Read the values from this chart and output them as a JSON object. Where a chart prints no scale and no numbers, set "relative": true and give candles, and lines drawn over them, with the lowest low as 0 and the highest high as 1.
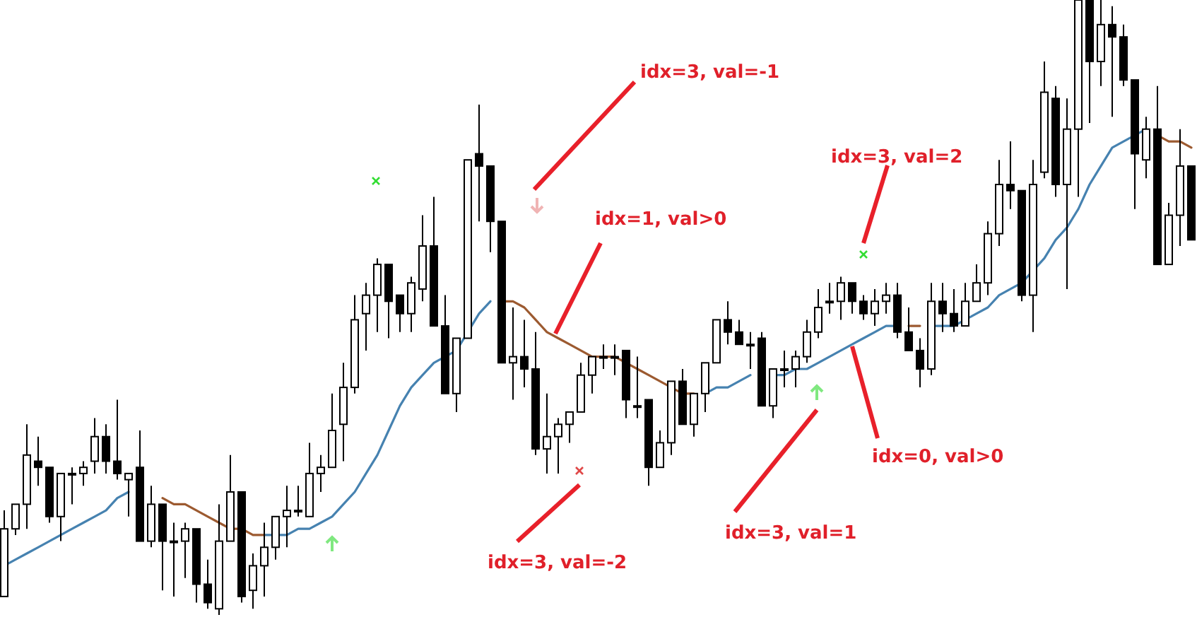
{
  "chart_data": {
    "type": "candlestick",
    "relative": true,
    "categories": [
      null,
      null,
      null,
      null,
      null,
      null,
      null,
      null,
      null,
      null,
      null,
      null,
      null,
      null,
      null,
      null,
      null,
      null,
      null,
      null,
      null,
      null,
      null,
      null,
      null,
      null,
      null,
      null,
      null,
      null,
      null,
      null,
      null,
      null,
      null,
      null,
      null,
      null,
      null,
      null,
      null,
      null,
      null,
      null,
      null,
      null,
      null,
      null,
      null,
      null,
      null,
      null,
      null,
      null,
      null,
      null,
      null,
      null,
      null,
      null,
      null,
      null,
      null,
      null,
      null,
      null,
      null,
      null,
      null,
      null,
      null,
      null,
      null,
      null,
      null,
      null,
      null,
      null,
      null,
      null,
      null,
      null,
      null,
      null,
      null,
      null,
      null,
      null,
      null,
      null,
      null,
      null,
      null,
      null,
      null,
      null,
      null,
      null,
      null,
      null,
      null,
      null,
      null,
      null,
      null,
      null
    ],
    "ohlc": [
      [
        0.03,
        0.17,
        0.03,
        0.14
      ],
      [
        0.14,
        0.18,
        0.13,
        0.18
      ],
      [
        0.18,
        0.31,
        0.14,
        0.26
      ],
      [
        0.25,
        0.29,
        0.21,
        0.24
      ],
      [
        0.24,
        0.24,
        0.15,
        0.16
      ],
      [
        0.16,
        0.23,
        0.12,
        0.23
      ],
      [
        0.23,
        0.24,
        0.18,
        0.23
      ],
      [
        0.23,
        0.25,
        0.21,
        0.24
      ],
      [
        0.25,
        0.32,
        0.23,
        0.29
      ],
      [
        0.29,
        0.31,
        0.23,
        0.25
      ],
      [
        0.25,
        0.35,
        0.22,
        0.23
      ],
      [
        0.22,
        0.23,
        0.16,
        0.23
      ],
      [
        0.24,
        0.3,
        0.12,
        0.12
      ],
      [
        0.12,
        0.21,
        0.11,
        0.18
      ],
      [
        0.18,
        0.18,
        0.04,
        0.12
      ],
      [
        0.12,
        0.15,
        0.03,
        0.12
      ],
      [
        0.12,
        0.15,
        0.06,
        0.14
      ],
      [
        0.14,
        0.14,
        0.02,
        0.05
      ],
      [
        0.05,
        0.09,
        0.01,
        0.02
      ],
      [
        0.01,
        0.18,
        0,
        0.12
      ],
      [
        0.12,
        0.26,
        0.12,
        0.2
      ],
      [
        0.2,
        0.2,
        0.02,
        0.03
      ],
      [
        0.04,
        0.1,
        0.01,
        0.08
      ],
      [
        0.08,
        0.15,
        0.03,
        0.11
      ],
      [
        0.11,
        0.16,
        0.09,
        0.16
      ],
      [
        0.16,
        0.21,
        0.11,
        0.17
      ],
      [
        0.17,
        0.21,
        0.16,
        0.17
      ],
      [
        0.16,
        0.28,
        0.16,
        0.23
      ],
      [
        0.23,
        0.26,
        0.2,
        0.24
      ],
      [
        0.24,
        0.36,
        0.24,
        0.3
      ],
      [
        0.31,
        0.41,
        0.25,
        0.37
      ],
      [
        0.37,
        0.52,
        0.36,
        0.48
      ],
      [
        0.49,
        0.54,
        0.43,
        0.52
      ],
      [
        0.52,
        0.58,
        0.46,
        0.57
      ],
      [
        0.57,
        0.57,
        0.45,
        0.51
      ],
      [
        0.52,
        0.52,
        0.46,
        0.49
      ],
      [
        0.49,
        0.55,
        0.46,
        0.54
      ],
      [
        0.53,
        0.65,
        0.51,
        0.6
      ],
      [
        0.6,
        0.68,
        0.47,
        0.47
      ],
      [
        0.47,
        0.52,
        0.36,
        0.36
      ],
      [
        0.36,
        0.45,
        0.33,
        0.45
      ],
      [
        0.45,
        0.74,
        0.45,
        0.74
      ],
      [
        0.75,
        0.83,
        0.64,
        0.73
      ],
      [
        0.73,
        0.73,
        0.59,
        0.64
      ],
      [
        0.64,
        0.64,
        0.41,
        0.41
      ],
      [
        0.41,
        0.5,
        0.35,
        0.42
      ],
      [
        0.42,
        0.48,
        0.37,
        0.4
      ],
      [
        0.4,
        0.46,
        0.26,
        0.27
      ],
      [
        0.27,
        0.36,
        0.23,
        0.29
      ],
      [
        0.29,
        0.32,
        0.23,
        0.31
      ],
      [
        0.31,
        0.33,
        0.28,
        0.33
      ],
      [
        0.33,
        0.41,
        0.33,
        0.39
      ],
      [
        0.39,
        0.42,
        0.36,
        0.42
      ],
      [
        0.42,
        0.44,
        0.4,
        0.42
      ],
      [
        0.42,
        0.44,
        0.39,
        0.42
      ],
      [
        0.43,
        0.43,
        0.32,
        0.35
      ],
      [
        0.34,
        0.42,
        0.32,
        0.34
      ],
      [
        0.35,
        0.35,
        0.21,
        0.24
      ],
      [
        0.24,
        0.3,
        0.24,
        0.28
      ],
      [
        0.28,
        0.38,
        0.26,
        0.38
      ],
      [
        0.38,
        0.4,
        0.31,
        0.31
      ],
      [
        0.31,
        0.36,
        0.29,
        0.36
      ],
      [
        0.36,
        0.41,
        0.33,
        0.41
      ],
      [
        0.41,
        0.48,
        0.41,
        0.48
      ],
      [
        0.48,
        0.51,
        0.44,
        0.46
      ],
      [
        0.46,
        0.48,
        0.44,
        0.44
      ],
      [
        0.44,
        0.46,
        0.4,
        0.44
      ],
      [
        0.45,
        0.46,
        0.34,
        0.34
      ],
      [
        0.34,
        0.4,
        0.32,
        0.4
      ],
      [
        0.4,
        0.43,
        0.37,
        0.4
      ],
      [
        0.4,
        0.43,
        0.37,
        0.42
      ],
      [
        0.42,
        0.48,
        0.41,
        0.46
      ],
      [
        0.46,
        0.53,
        0.45,
        0.5
      ],
      [
        0.51,
        0.54,
        0.49,
        0.51
      ],
      [
        0.51,
        0.55,
        0.48,
        0.54
      ],
      [
        0.54,
        0.54,
        0.49,
        0.51
      ],
      [
        0.51,
        0.52,
        0.48,
        0.49
      ],
      [
        0.49,
        0.53,
        0.47,
        0.51
      ],
      [
        0.51,
        0.54,
        0.49,
        0.52
      ],
      [
        0.52,
        0.54,
        0.45,
        0.46
      ],
      [
        0.46,
        0.5,
        0.43,
        0.43
      ],
      [
        0.43,
        0.45,
        0.37,
        0.4
      ],
      [
        0.4,
        0.54,
        0.39,
        0.51
      ],
      [
        0.51,
        0.54,
        0.46,
        0.49
      ],
      [
        0.49,
        0.53,
        0.46,
        0.47
      ],
      [
        0.47,
        0.54,
        0.47,
        0.51
      ],
      [
        0.51,
        0.57,
        0.51,
        0.54
      ],
      [
        0.54,
        0.64,
        0.52,
        0.62
      ],
      [
        0.62,
        0.74,
        0.6,
        0.7
      ],
      [
        0.7,
        0.77,
        0.66,
        0.69
      ],
      [
        0.69,
        0.69,
        0.51,
        0.52
      ],
      [
        0.52,
        0.74,
        0.46,
        0.7
      ],
      [
        0.72,
        0.9,
        0.71,
        0.85
      ],
      [
        0.84,
        0.86,
        0.68,
        0.7
      ],
      [
        0.7,
        0.84,
        0.53,
        0.79
      ],
      [
        0.79,
        1,
        0.68,
        1
      ],
      [
        1,
        1,
        0.8,
        0.9
      ],
      [
        0.9,
        1,
        0.86,
        0.96
      ],
      [
        0.96,
        0.99,
        0.81,
        0.94
      ],
      [
        0.94,
        0.96,
        0.86,
        0.87
      ],
      [
        0.87,
        0.87,
        0.66,
        0.75
      ],
      [
        0.74,
        0.81,
        0.71,
        0.79
      ],
      [
        0.79,
        0.86,
        0.57,
        0.57
      ],
      [
        0.57,
        0.67,
        0.57,
        0.65
      ],
      [
        0.65,
        0.79,
        0.6,
        0.73
      ],
      [
        0.73,
        0.73,
        0.61,
        0.61
      ]
    ],
    "series": [
      {
        "type": "line",
        "color": "#4682b0",
        "values": [
          0.08,
          0.09,
          0.1,
          0.11,
          0.12,
          0.13,
          0.14,
          0.15,
          0.16,
          0.17,
          0.19,
          0.2,
          null,
          null,
          null,
          null,
          null,
          null,
          null,
          null,
          null,
          null,
          null,
          0.13,
          0.13,
          0.13,
          0.14,
          0.14,
          0.15,
          0.16,
          0.18,
          0.2,
          0.23,
          0.26,
          0.3,
          0.34,
          0.37,
          0.39,
          0.41,
          0.42,
          0.43,
          0.46,
          0.49,
          0.51,
          null,
          null,
          null,
          null,
          null,
          null,
          null,
          null,
          null,
          null,
          null,
          null,
          null,
          null,
          null,
          null,
          null,
          null,
          0.36,
          0.37,
          0.37,
          0.38,
          0.39,
          null,
          0.39,
          0.39,
          0.4,
          0.4,
          0.41,
          0.42,
          0.43,
          0.44,
          0.45,
          0.46,
          0.47,
          0.47,
          null,
          null,
          0.47,
          0.47,
          0.47,
          0.48,
          0.49,
          0.5,
          0.52,
          0.53,
          0.54,
          0.56,
          0.58,
          0.61,
          0.63,
          0.66,
          0.7,
          0.73,
          0.76,
          0.77,
          0.78,
          0.79,
          null,
          null,
          null,
          null
        ]
      },
      {
        "type": "line",
        "color": "#9c5a30",
        "values": [
          null,
          null,
          null,
          null,
          null,
          null,
          null,
          null,
          null,
          null,
          null,
          null,
          null,
          null,
          0.19,
          0.18,
          0.18,
          0.17,
          0.16,
          0.15,
          0.14,
          0.14,
          0.13,
          0.13,
          null,
          null,
          null,
          null,
          null,
          null,
          null,
          null,
          null,
          null,
          null,
          null,
          null,
          null,
          null,
          null,
          null,
          null,
          null,
          null,
          0.51,
          0.51,
          0.5,
          0.48,
          0.46,
          0.45,
          0.44,
          0.43,
          0.42,
          0.42,
          0.42,
          0.41,
          0.4,
          0.39,
          0.38,
          0.37,
          0.36,
          0.36,
          null,
          null,
          null,
          null,
          null,
          null,
          null,
          null,
          null,
          null,
          null,
          null,
          null,
          null,
          null,
          null,
          null,
          null,
          0.47,
          0.47,
          null,
          null,
          null,
          null,
          null,
          null,
          null,
          null,
          null,
          null,
          null,
          null,
          null,
          null,
          null,
          null,
          null,
          null,
          null,
          null,
          0.78,
          0.77,
          0.77,
          0.76
        ]
      }
    ],
    "annotations": [
      "idx=3, val=-1",
      "idx=1, val>0",
      "idx=3, val=2",
      "idx=0, val>0",
      "idx=3, val=-2",
      "idx=3, val=1"
    ]
  }
}
